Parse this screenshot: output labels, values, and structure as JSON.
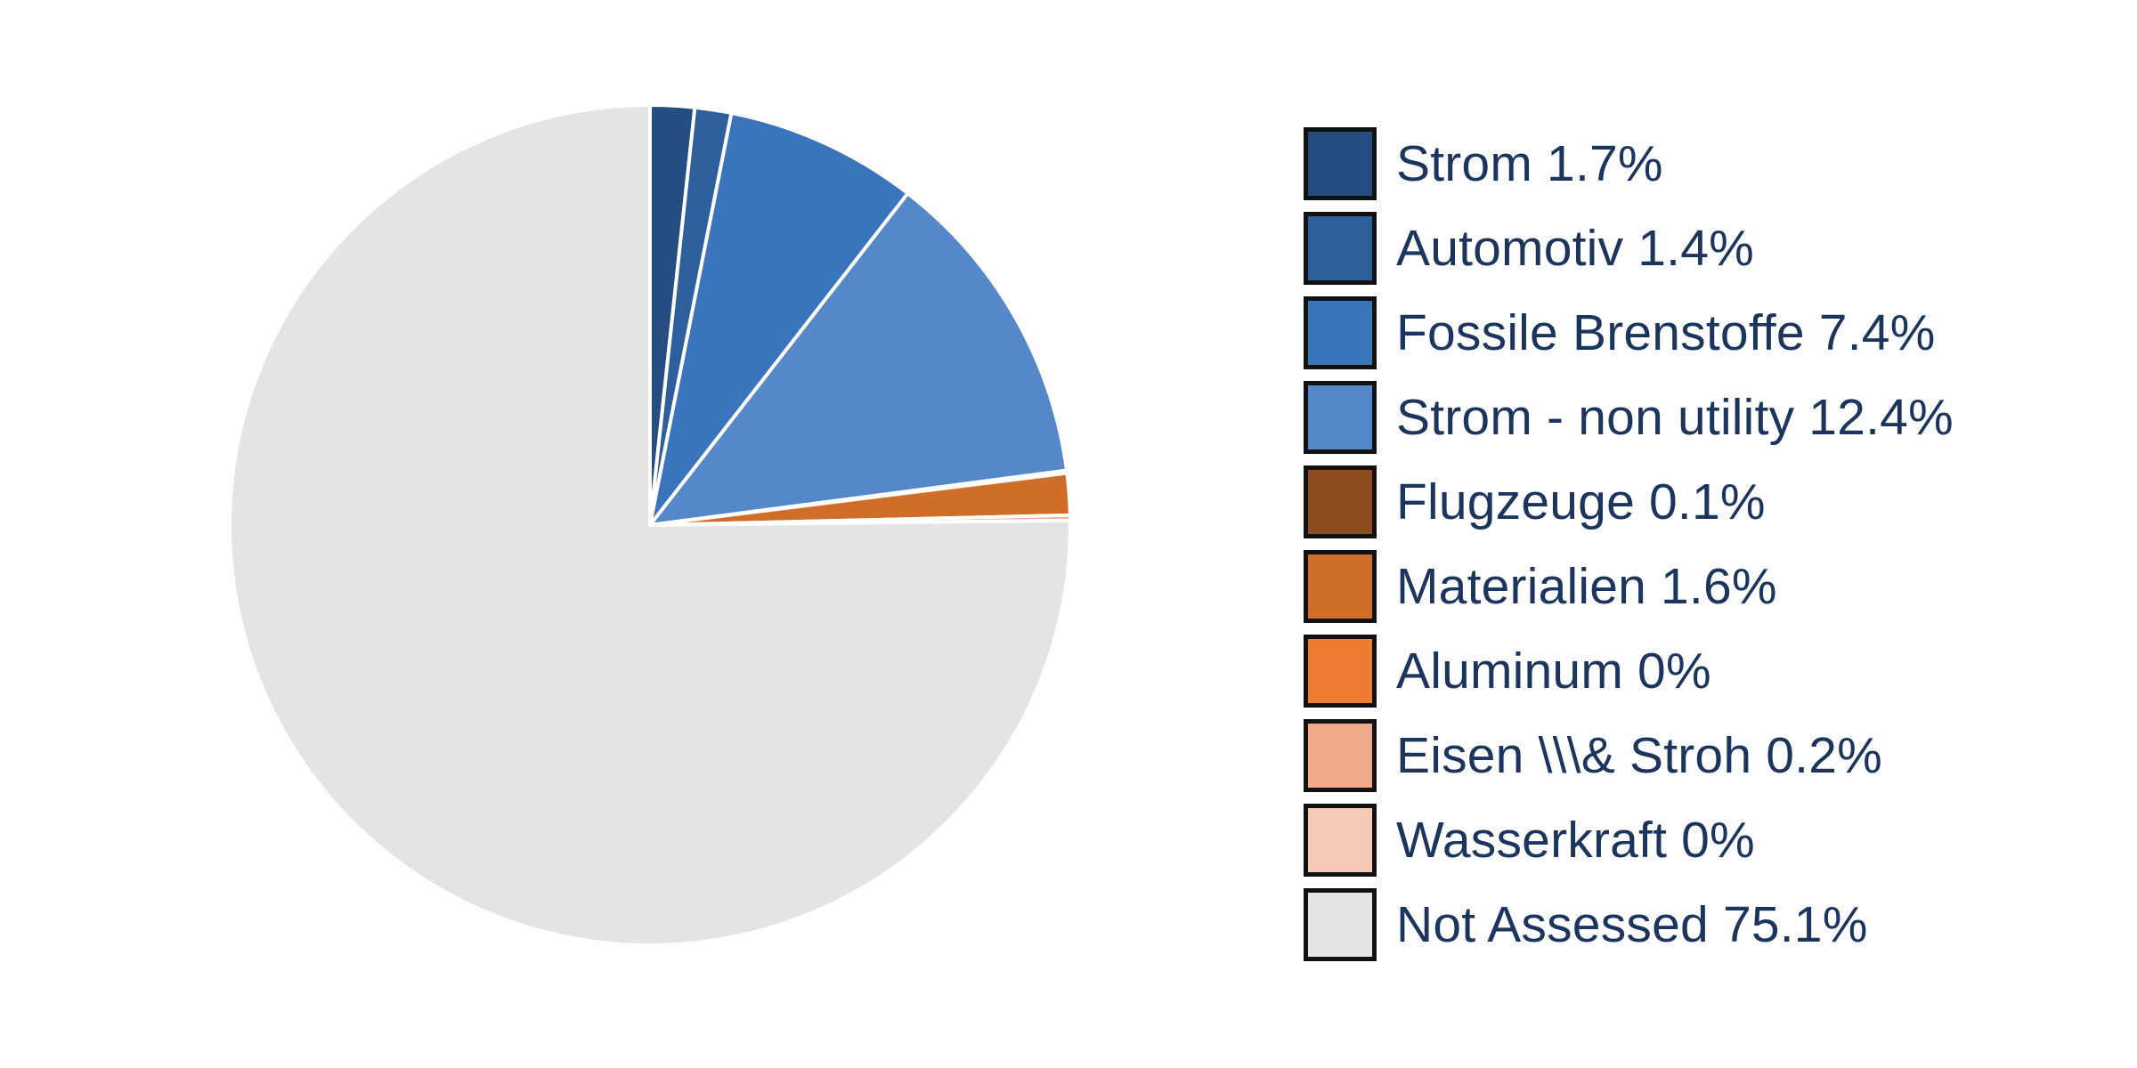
{
  "chart_data": {
    "type": "pie",
    "title": "",
    "start_angle_deg": 0,
    "direction": "clockwise",
    "slices": [
      {
        "label": "Strom",
        "value": 1.7,
        "legend": "Strom 1.7%",
        "color": "#264d82"
      },
      {
        "label": "Automotiv",
        "value": 1.4,
        "legend": "Automotiv 1.4%",
        "color": "#2e5f9d"
      },
      {
        "label": "Fossile Brenstoffe",
        "value": 7.4,
        "legend": "Fossile Brenstoffe 7.4%",
        "color": "#3a74bd"
      },
      {
        "label": "Strom - non utility",
        "value": 12.4,
        "legend": "Strom - non utility 12.4%",
        "color": "#5488c9"
      },
      {
        "label": "Flugzeuge",
        "value": 0.1,
        "legend": "Flugzeuge 0.1%",
        "color": "#8d4a1e"
      },
      {
        "label": "Materialien",
        "value": 1.6,
        "legend": "Materialien 1.6%",
        "color": "#d06e29"
      },
      {
        "label": "Aluminum",
        "value": 0,
        "legend": "Aluminum 0%",
        "color": "#ed7d31"
      },
      {
        "label": "Eisen \\\\\\& Stroh",
        "value": 0.2,
        "legend": "Eisen \\\\\\& Stroh 0.2%",
        "color": "#f1a98c"
      },
      {
        "label": "Wasserkraft",
        "value": 0,
        "legend": "Wasserkraft 0%",
        "color": "#f5c9b8"
      },
      {
        "label": "Not Assessed",
        "value": 75.1,
        "legend": "Not Assessed 75.1%",
        "color": "#e4e4e4"
      }
    ],
    "legend_position": "right"
  }
}
